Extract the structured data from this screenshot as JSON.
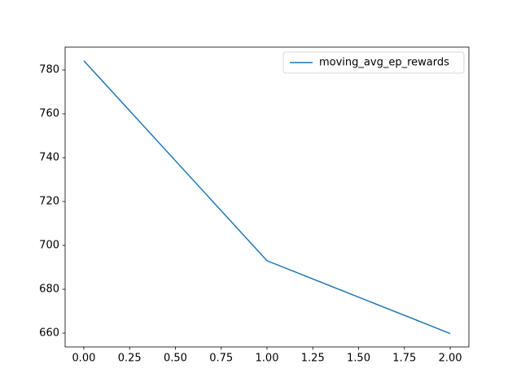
{
  "chart_data": {
    "type": "line",
    "x": [
      0,
      1,
      2
    ],
    "series": [
      {
        "name": "moving_avg_ep_rewards",
        "color": "#1f77b4",
        "values": [
          784.2,
          693,
          659.8
        ]
      }
    ],
    "xlim": [
      -0.102,
      2.102
    ],
    "xticks": [
      {
        "value": 0,
        "label": "0.00"
      },
      {
        "value": 0.25,
        "label": "0.25"
      },
      {
        "value": 0.5,
        "label": "0.50"
      },
      {
        "value": 0.75,
        "label": "0.75"
      },
      {
        "value": 1,
        "label": "1.00"
      },
      {
        "value": 1.25,
        "label": "1.25"
      },
      {
        "value": 1.5,
        "label": "1.50"
      },
      {
        "value": 1.75,
        "label": "1.75"
      },
      {
        "value": 2,
        "label": "2.00"
      }
    ],
    "ylim": [
      653.7,
      790.4
    ],
    "yticks": [
      660,
      680,
      700,
      720,
      740,
      760,
      780
    ],
    "legend": "upper right"
  }
}
